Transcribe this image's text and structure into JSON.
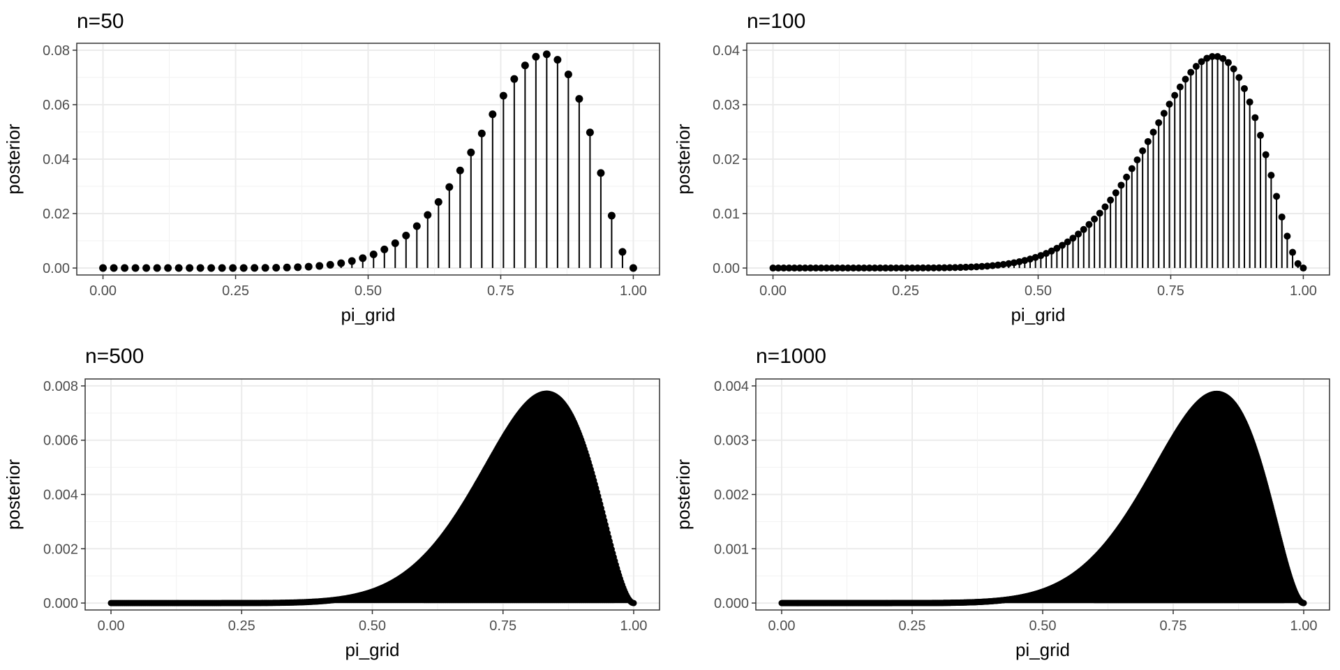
{
  "chart_data": [
    {
      "type": "lollipop",
      "title": "n=50",
      "xlabel": "pi_grid",
      "ylabel": "posterior",
      "xlim": [
        0,
        1
      ],
      "ylim": [
        0,
        0.08
      ],
      "xticks": [
        "0.00",
        "0.25",
        "0.50",
        "0.75",
        "1.00"
      ],
      "yticks": [
        "0.00",
        "0.02",
        "0.04",
        "0.06",
        "0.08"
      ],
      "grid": true,
      "grid_points": 50,
      "mode_x": 0.83,
      "peak_posterior": 0.0786,
      "series": [
        {
          "x_range": [
            0,
            1
          ],
          "count": 50,
          "peak": 0.0786,
          "color": "#000000"
        }
      ]
    },
    {
      "type": "lollipop",
      "title": "n=100",
      "xlabel": "pi_grid",
      "ylabel": "posterior",
      "xlim": [
        0,
        1
      ],
      "ylim": [
        0,
        0.04
      ],
      "xticks": [
        "0.00",
        "0.25",
        "0.50",
        "0.75",
        "1.00"
      ],
      "yticks": [
        "0.00",
        "0.01",
        "0.02",
        "0.03",
        "0.04"
      ],
      "grid": true,
      "grid_points": 100,
      "mode_x": 0.83,
      "peak_posterior": 0.039,
      "series": [
        {
          "x_range": [
            0,
            1
          ],
          "count": 100,
          "peak": 0.039,
          "color": "#000000"
        }
      ]
    },
    {
      "type": "lollipop",
      "title": "n=500",
      "xlabel": "pi_grid",
      "ylabel": "posterior",
      "xlim": [
        0,
        1
      ],
      "ylim": [
        0,
        0.008
      ],
      "xticks": [
        "0.00",
        "0.25",
        "0.50",
        "0.75",
        "1.00"
      ],
      "yticks": [
        "0.000",
        "0.002",
        "0.004",
        "0.006",
        "0.008"
      ],
      "grid": true,
      "grid_points": 500,
      "mode_x": 0.83,
      "peak_posterior": 0.00785,
      "series": [
        {
          "x_range": [
            0,
            1
          ],
          "count": 500,
          "peak": 0.00785,
          "color": "#000000"
        }
      ]
    },
    {
      "type": "lollipop",
      "title": "n=1000",
      "xlabel": "pi_grid",
      "ylabel": "posterior",
      "xlim": [
        0,
        1
      ],
      "ylim": [
        0,
        0.004
      ],
      "xticks": [
        "0.00",
        "0.25",
        "0.50",
        "0.75",
        "1.00"
      ],
      "yticks": [
        "0.000",
        "0.001",
        "0.002",
        "0.003",
        "0.004"
      ],
      "grid": true,
      "grid_points": 1000,
      "mode_x": 0.83,
      "peak_posterior": 0.00393,
      "series": [
        {
          "x_range": [
            0,
            1
          ],
          "count": 1000,
          "peak": 0.00393,
          "color": "#000000"
        }
      ]
    }
  ]
}
